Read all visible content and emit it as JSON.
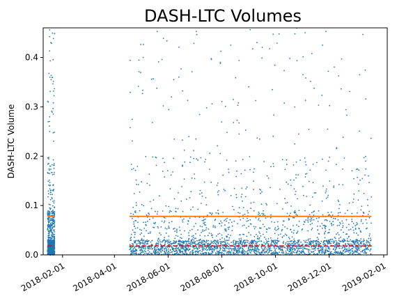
{
  "chart_data": {
    "type": "scatter",
    "title": "DASH-LTC Volumes",
    "xlabel": "",
    "ylabel": "DASH-LTC Volume",
    "x_ticks": [
      "2018-02-01",
      "2018-04-01",
      "2018-06-01",
      "2018-08-01",
      "2018-10-01",
      "2018-12-01",
      "2019-02-01"
    ],
    "y_ticks": [
      "0.0",
      "0.1",
      "0.2",
      "0.3",
      "0.4"
    ],
    "xlim": [
      "2018-01-10",
      "2019-02-05"
    ],
    "ylim": [
      0,
      0.46
    ],
    "grid": false,
    "colors": {
      "points": "#1f77b4",
      "mean_line": "#ff7f0e",
      "median_line": "#ff0000"
    },
    "series": [
      {
        "kind": "points",
        "clusters": [
          {
            "x_start": "2018-01-15",
            "x_end": "2018-01-23",
            "y_max": 0.46,
            "density": "high"
          },
          {
            "x_start": "2018-04-18",
            "x_end": "2019-01-18",
            "y_max": 0.46,
            "density": "medium"
          }
        ]
      },
      {
        "kind": "mean-line",
        "segments": [
          {
            "x_start": "2018-01-15",
            "x_end": "2018-01-23",
            "y": 0.078
          },
          {
            "x_start": "2018-04-18",
            "x_end": "2019-01-18",
            "y": 0.078
          }
        ]
      },
      {
        "kind": "median-line",
        "segments": [
          {
            "x_start": "2018-01-15",
            "x_end": "2018-01-23",
            "y": 0.018
          },
          {
            "x_start": "2018-04-18",
            "x_end": "2019-01-18",
            "y": 0.018
          }
        ]
      }
    ]
  }
}
